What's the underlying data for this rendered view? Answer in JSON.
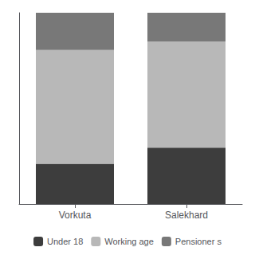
{
  "chart_data": {
    "type": "bar",
    "stacked": true,
    "categories": [
      "Vorkuta",
      "Salekhard"
    ],
    "series": [
      {
        "name": "Under 18",
        "color": "#3d3d3d",
        "values": [
          0.21,
          0.295
        ]
      },
      {
        "name": "Working age",
        "color": "#b8b8b8",
        "values": [
          0.595,
          0.555
        ]
      },
      {
        "name": "Pensioner s",
        "color": "#787878",
        "values": [
          0.195,
          0.15
        ]
      }
    ],
    "ylim": [
      0,
      1.0
    ],
    "yticks": [],
    "grid": false,
    "legend": "bottom",
    "tick_labels": "x"
  }
}
